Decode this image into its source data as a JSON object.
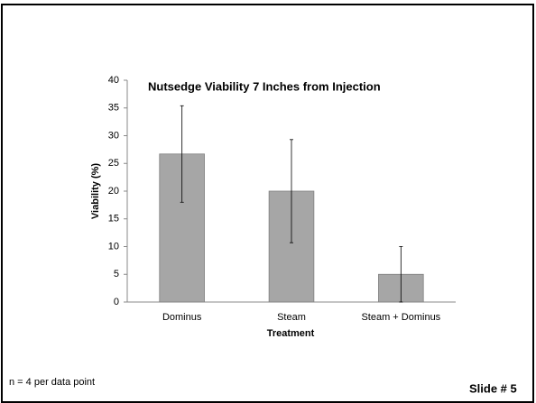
{
  "chart_data": {
    "type": "bar",
    "title": "Nutsedge Viability 7 Inches from Injection",
    "x_label": "Treatment",
    "y_label": "Viability (%)",
    "categories": [
      "Dominus",
      "Steam",
      "Steam + Dominus"
    ],
    "values": [
      26.7,
      20,
      5
    ],
    "errors": [
      8.7,
      9.3,
      5
    ],
    "color": "#a6a6a6",
    "ylim": [
      0,
      40
    ],
    "yticks": [
      0,
      5,
      10,
      15,
      20,
      25,
      30,
      35,
      40
    ],
    "grid": false
  },
  "footnote": "n = 4 per data point",
  "slide_label": "Slide # 5"
}
